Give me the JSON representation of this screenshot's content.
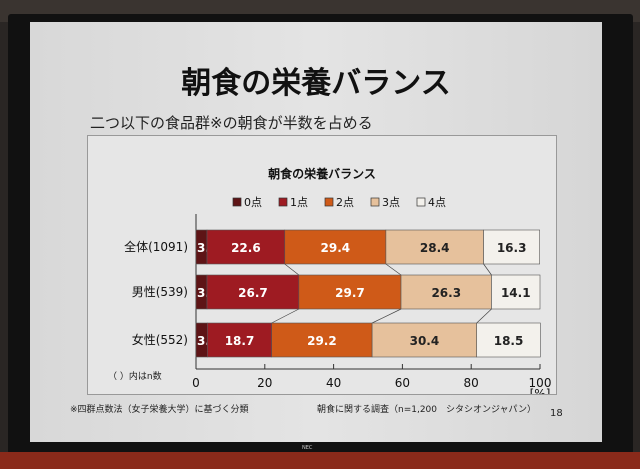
{
  "slide": {
    "title": "朝食の栄養バランス",
    "subtitle": "二つ以下の食品群※の朝食が半数を占める",
    "footnote": "※四群点数法（女子栄養大学）に基づく分類",
    "source": "朝食に関する調査（n=1,200　シタシオンジャパン）",
    "page_number": "18",
    "n_note": "（ ）内はn数",
    "brand": "NEC"
  },
  "chart_data": {
    "type": "bar",
    "orientation": "horizontal",
    "stacked": "100%",
    "title": "朝食の栄養バランス",
    "categories": [
      "全体(1091)",
      "男性(539)",
      "女性(552)"
    ],
    "series": [
      {
        "name": "0点",
        "color": "#5e1416",
        "values": [
          3.2,
          3.2,
          3.3
        ]
      },
      {
        "name": "1点",
        "color": "#9e1b22",
        "values": [
          22.6,
          26.7,
          18.7
        ]
      },
      {
        "name": "2点",
        "color": "#cf5a18",
        "values": [
          29.4,
          29.7,
          29.2
        ]
      },
      {
        "name": "3点",
        "color": "#e6c19c",
        "values": [
          28.4,
          26.3,
          30.4
        ]
      },
      {
        "name": "4点",
        "color": "#f3f1ec",
        "values": [
          16.3,
          14.1,
          18.5
        ]
      }
    ],
    "xlim": [
      0,
      100
    ],
    "xticks": [
      "0",
      "20",
      "40",
      "60",
      "80",
      "100"
    ],
    "xunit": "[%]",
    "legend_position": "top",
    "grid": false
  }
}
